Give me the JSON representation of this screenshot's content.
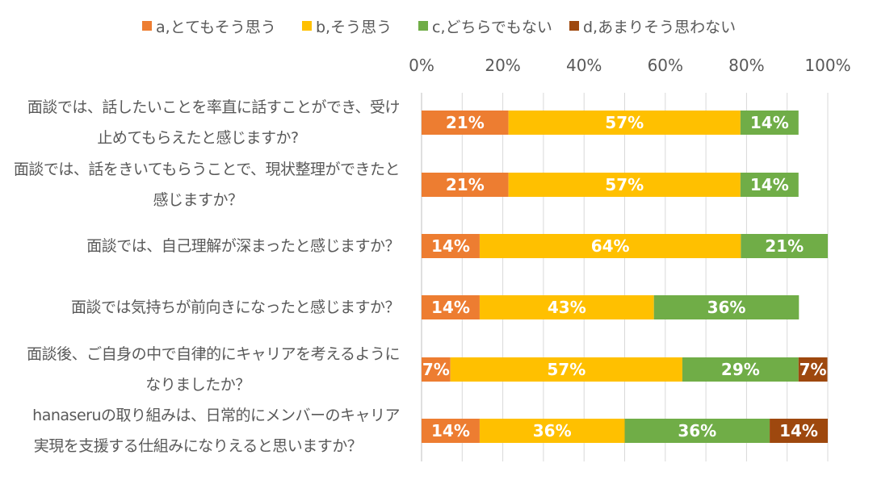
{
  "chart_data": {
    "type": "bar",
    "orientation": "horizontal",
    "stacked": true,
    "xlim": [
      0,
      100
    ],
    "x_ticks": [
      "0%",
      "20%",
      "40%",
      "60%",
      "80%",
      "100%"
    ],
    "grid": true,
    "legend_position": "top",
    "categories": [
      [
        "面談では、話したいことを率直に話すことができ、受け",
        "止めてもらえたと感じますか?"
      ],
      [
        "面談では、話をきいてもらうことで、現状整理ができたと",
        "感じますか？"
      ],
      [
        "面談では、自己理解が深まったと感じますか？"
      ],
      [
        "面談では気持ちが前向きになったと感じますか？"
      ],
      [
        "面談後、ご自身の中で自律的にキャリアを考えるように",
        "なりましたか？"
      ],
      [
        "hanaseruの取り組みは、日常的にメンバーのキャリア",
        "実現を支援する仕組みになりえると思いますか？"
      ]
    ],
    "series": [
      {
        "name": "a,とてもそう思う",
        "color": "#ED7D31",
        "values": [
          21.4,
          21.4,
          14.3,
          14.3,
          7.1,
          14.3
        ],
        "labels": [
          "21%",
          "21%",
          "14%",
          "14%",
          "7%",
          "14%"
        ]
      },
      {
        "name": "b,そう思う",
        "color": "#FFC000",
        "values": [
          57.1,
          57.1,
          64.3,
          42.9,
          57.1,
          35.7
        ],
        "labels": [
          "57%",
          "57%",
          "64%",
          "43%",
          "57%",
          "36%"
        ]
      },
      {
        "name": "c,どちらでもない",
        "color": "#70AD47",
        "values": [
          14.3,
          14.3,
          21.4,
          35.7,
          28.6,
          35.7
        ],
        "labels": [
          "14%",
          "14%",
          "21%",
          "36%",
          "29%",
          "36%"
        ]
      },
      {
        "name": "d,あまりそう思わない",
        "color": "#9E480E",
        "values": [
          0,
          0,
          0,
          0,
          7.1,
          14.3
        ],
        "labels": [
          "",
          "",
          "",
          "",
          "7%",
          "14%"
        ]
      }
    ]
  }
}
